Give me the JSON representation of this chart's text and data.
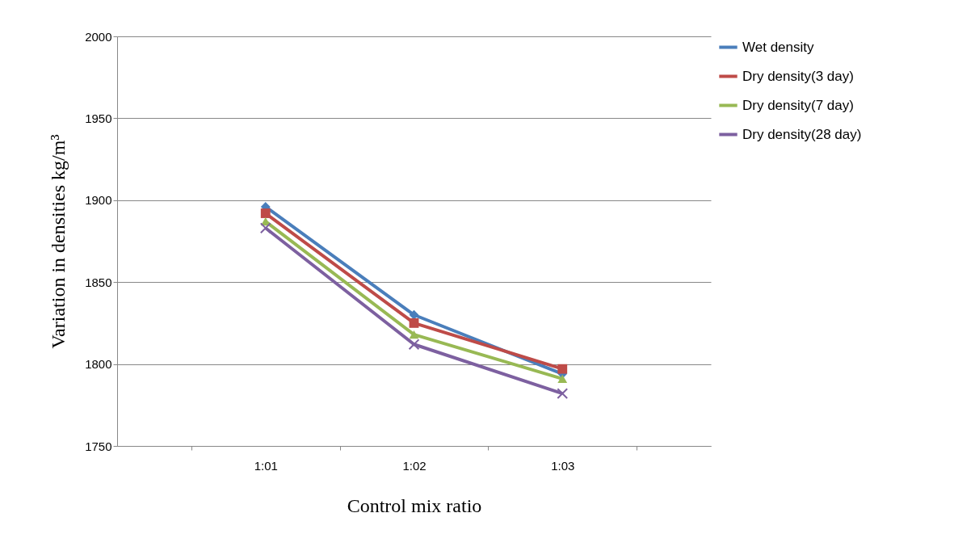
{
  "chart_data": {
    "type": "line",
    "xlabel": "Control mix ratio",
    "ylabel": "Variation in densities kg/m³",
    "categories": [
      "1:01",
      "1:02",
      "1:03"
    ],
    "series": [
      {
        "name": "Wet density",
        "color": "#4a7ebb",
        "marker": "diamond",
        "values": [
          1896,
          1830,
          1794
        ]
      },
      {
        "name": "Dry density(3 day)",
        "color": "#be4b48",
        "marker": "square",
        "values": [
          1892,
          1825,
          1797
        ]
      },
      {
        "name": "Dry density(7 day)",
        "color": "#98b954",
        "marker": "triangle",
        "values": [
          1887,
          1818,
          1791
        ]
      },
      {
        "name": "Dry density(28 day)",
        "color": "#7d60a0",
        "marker": "cross",
        "values": [
          1883,
          1812,
          1782
        ]
      }
    ],
    "ylim": [
      1750,
      2000
    ],
    "yticks": [
      1750,
      1800,
      1850,
      1900,
      1950,
      2000
    ],
    "grid": "y",
    "legend": "right"
  }
}
